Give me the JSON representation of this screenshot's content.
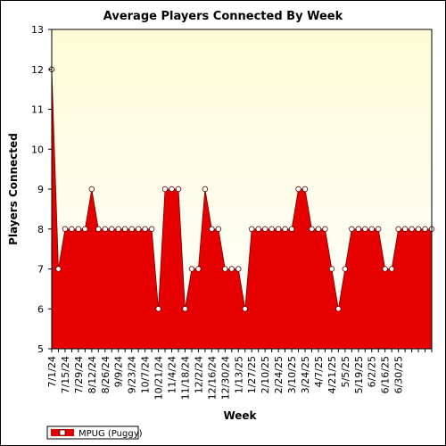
{
  "chart_data": {
    "type": "area",
    "title": "Average Players Connected By Week",
    "xlabel": "Week",
    "ylabel": "Players Connected",
    "ylim": [
      5,
      13
    ],
    "yticks": [
      5,
      6,
      7,
      8,
      9,
      10,
      11,
      12,
      13
    ],
    "grid": false,
    "legend_position": "bottom-left",
    "background_gradient": [
      "#ffffff",
      "#fdfbd6"
    ],
    "series_color": "#e60000",
    "x_tick_labels": [
      "7/1/24",
      "7/15/24",
      "7/29/24",
      "8/12/24",
      "8/26/24",
      "9/9/24",
      "9/23/24",
      "10/7/24",
      "10/21/24",
      "11/4/24",
      "11/18/24",
      "12/2/24",
      "12/16/24",
      "12/30/24",
      "1/13/25",
      "1/27/25",
      "2/10/25",
      "2/24/25",
      "3/10/25",
      "3/24/25",
      "4/7/25",
      "4/21/25",
      "5/5/25",
      "5/19/25",
      "6/2/25",
      "6/16/25",
      "6/30/25"
    ],
    "series": [
      {
        "name": "MPUG (Puggy)",
        "values": [
          12,
          7,
          8,
          8,
          8,
          8,
          9,
          8,
          8,
          8,
          8,
          8,
          8,
          8,
          8,
          8,
          6,
          9,
          9,
          9,
          6,
          7,
          7,
          9,
          8,
          8,
          7,
          7,
          7,
          6,
          8,
          8,
          8,
          8,
          8,
          8,
          8,
          9,
          9,
          8,
          8,
          8,
          7,
          6,
          7,
          8,
          8,
          8,
          8,
          8,
          7,
          7,
          8,
          8,
          8,
          8,
          8,
          8
        ]
      }
    ]
  }
}
